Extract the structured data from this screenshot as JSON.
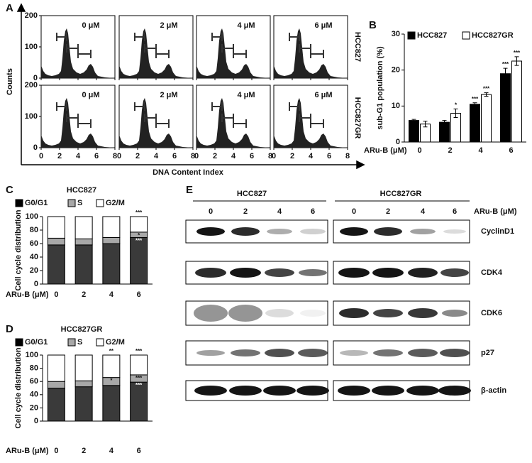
{
  "panel_labels": [
    "A",
    "B",
    "C",
    "D",
    "E"
  ],
  "panel_a": {
    "concentrations": [
      "0 μM",
      "2 μM",
      "4 μM",
      "6 μM"
    ],
    "cell_lines": [
      "HCC827",
      "HCC827GR"
    ],
    "y_axis_label": "Counts",
    "x_axis_label": "DNA Content Index",
    "xticks": [
      0,
      2,
      4,
      6,
      8
    ],
    "yticks": [
      0,
      100,
      200
    ]
  },
  "chart_data": [
    {
      "type": "bar",
      "y_axis_label": "sub-G1 population (%)",
      "x_axis_label": "ARu-B (μM)",
      "categories": [
        "0",
        "2",
        "4",
        "6"
      ],
      "series": [
        {
          "name": "HCC827",
          "color": "#000000",
          "values": [
            6,
            5.5,
            10.5,
            19
          ],
          "errors": [
            0.3,
            0.5,
            0.4,
            1.5
          ],
          "significance": [
            null,
            null,
            "***",
            "***"
          ]
        },
        {
          "name": "HCC827GR",
          "color": "#ffffff",
          "values": [
            5,
            8,
            13.2,
            22.5
          ],
          "errors": [
            0.8,
            1.2,
            0.5,
            1.2
          ],
          "significance": [
            null,
            "*",
            "***",
            "***"
          ]
        }
      ],
      "ylim": [
        0,
        30
      ],
      "yticks": [
        0,
        10,
        20,
        30
      ]
    },
    {
      "type": "stacked_bar",
      "title": "HCC827",
      "y_axis_label": "Cell cycle distribution",
      "x_axis_label": "ARu-B (μM)",
      "categories": [
        "0",
        "2",
        "4",
        "6"
      ],
      "series": [
        {
          "name": "G0/G1",
          "color": "#3a3a3a",
          "values": [
            58,
            58,
            60,
            69
          ],
          "significance": [
            null,
            null,
            null,
            "***"
          ]
        },
        {
          "name": "S",
          "color": "#a8a8a8",
          "values": [
            10,
            9,
            9,
            8
          ],
          "significance": [
            null,
            null,
            null,
            "*"
          ]
        },
        {
          "name": "G2/M",
          "color": "#ffffff",
          "values": [
            32,
            33,
            31,
            23
          ],
          "significance": [
            null,
            null,
            null,
            "***"
          ]
        }
      ],
      "ylim": [
        0,
        100
      ],
      "yticks": [
        0,
        20,
        40,
        60,
        80,
        100
      ]
    },
    {
      "type": "stacked_bar",
      "title": "HCC827GR",
      "y_axis_label": "Cell cycle distribution",
      "x_axis_label": "ARu-B (μM)",
      "categories": [
        "0",
        "2",
        "4",
        "6"
      ],
      "series": [
        {
          "name": "G0/G1",
          "color": "#3a3a3a",
          "values": [
            50,
            52,
            54,
            59
          ],
          "significance": [
            null,
            null,
            null,
            "***"
          ]
        },
        {
          "name": "S",
          "color": "#a8a8a8",
          "values": [
            10,
            9,
            12,
            11
          ],
          "significance": [
            null,
            null,
            "*",
            "***"
          ]
        },
        {
          "name": "G2/M",
          "color": "#ffffff",
          "values": [
            40,
            39,
            34,
            30
          ],
          "significance": [
            null,
            null,
            "**",
            "***"
          ]
        }
      ],
      "ylim": [
        0,
        100
      ],
      "yticks": [
        0,
        20,
        40,
        60,
        80,
        100
      ]
    }
  ],
  "panel_e": {
    "cell_lines": [
      "HCC827",
      "HCC827GR"
    ],
    "doses": [
      "0",
      "2",
      "4",
      "6"
    ],
    "dose_label": "ARu-B (μM)",
    "proteins": [
      "CyclinD1",
      "CDK4",
      "CDK6",
      "p27",
      "β-actin"
    ]
  }
}
